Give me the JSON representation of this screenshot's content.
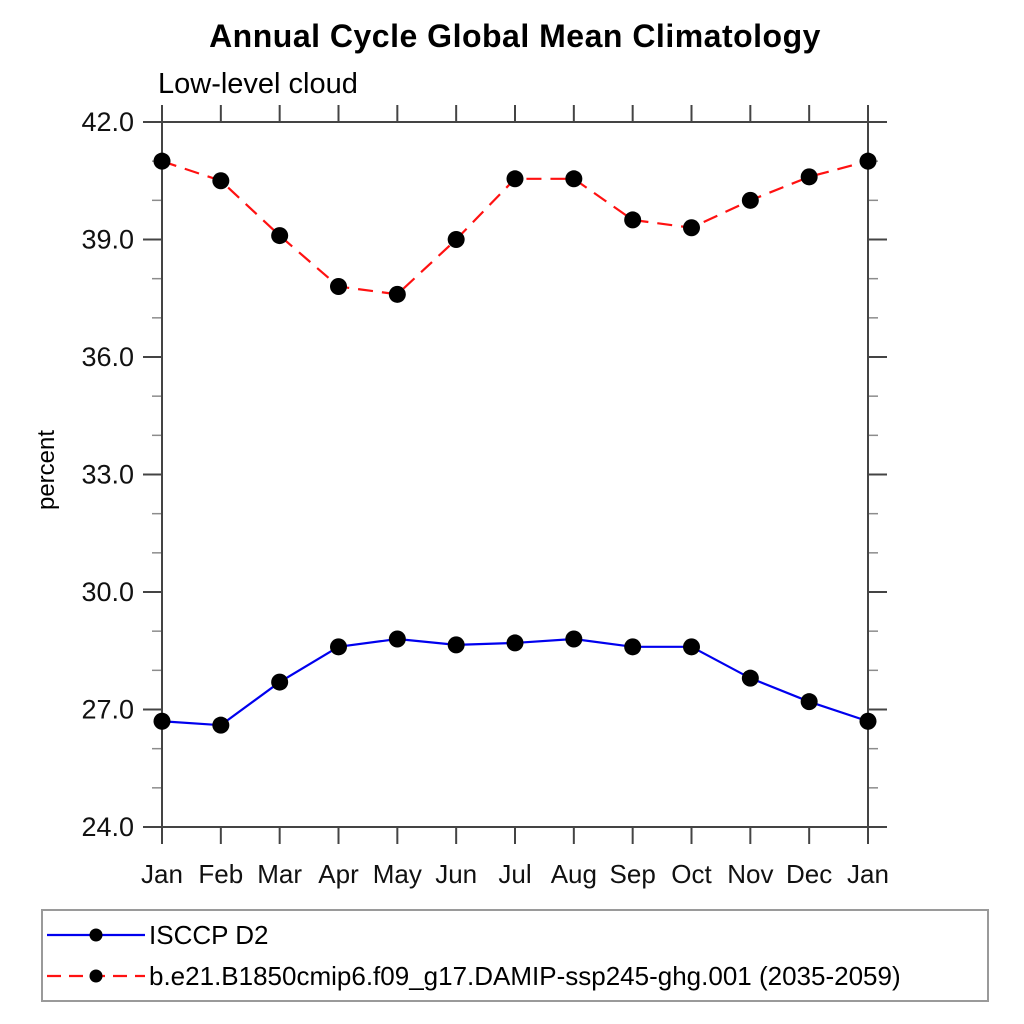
{
  "chart_data": {
    "type": "line",
    "title": "Annual Cycle Global Mean Climatology",
    "subtitle": "Low-level cloud",
    "ylabel": "percent",
    "categories": [
      "Jan",
      "Feb",
      "Mar",
      "Apr",
      "May",
      "Jun",
      "Jul",
      "Aug",
      "Sep",
      "Oct",
      "Nov",
      "Dec",
      "Jan"
    ],
    "ylim": [
      24.0,
      42.0
    ],
    "ytick_labels": [
      "24.0",
      "27.0",
      "30.0",
      "33.0",
      "36.0",
      "39.0",
      "42.0"
    ],
    "ytick_major_interval": 3.0,
    "ytick_minor_interval": 1.0,
    "grid": false,
    "legend_position": "bottom",
    "colors": {
      "frame": "#444444",
      "minor_tick": "#8c8c8c",
      "marker": "#000000",
      "legend_border": "#9a9a9a"
    },
    "series": [
      {
        "name": "ISCCP D2",
        "color": "#0000ee",
        "line_style": "solid",
        "marker": "filled-circle",
        "values": [
          26.7,
          26.6,
          27.7,
          28.6,
          28.8,
          28.65,
          28.7,
          28.8,
          28.6,
          28.6,
          27.8,
          27.2,
          26.7
        ]
      },
      {
        "name": "b.e21.B1850cmip6.f09_g17.DAMIP-ssp245-ghg.001 (2035-2059)",
        "color": "#ff1111",
        "line_style": "dashed",
        "marker": "filled-circle",
        "values": [
          41.0,
          40.5,
          39.1,
          37.8,
          37.6,
          39.0,
          40.55,
          40.55,
          39.5,
          39.3,
          40.0,
          40.6,
          41.0
        ]
      }
    ]
  }
}
